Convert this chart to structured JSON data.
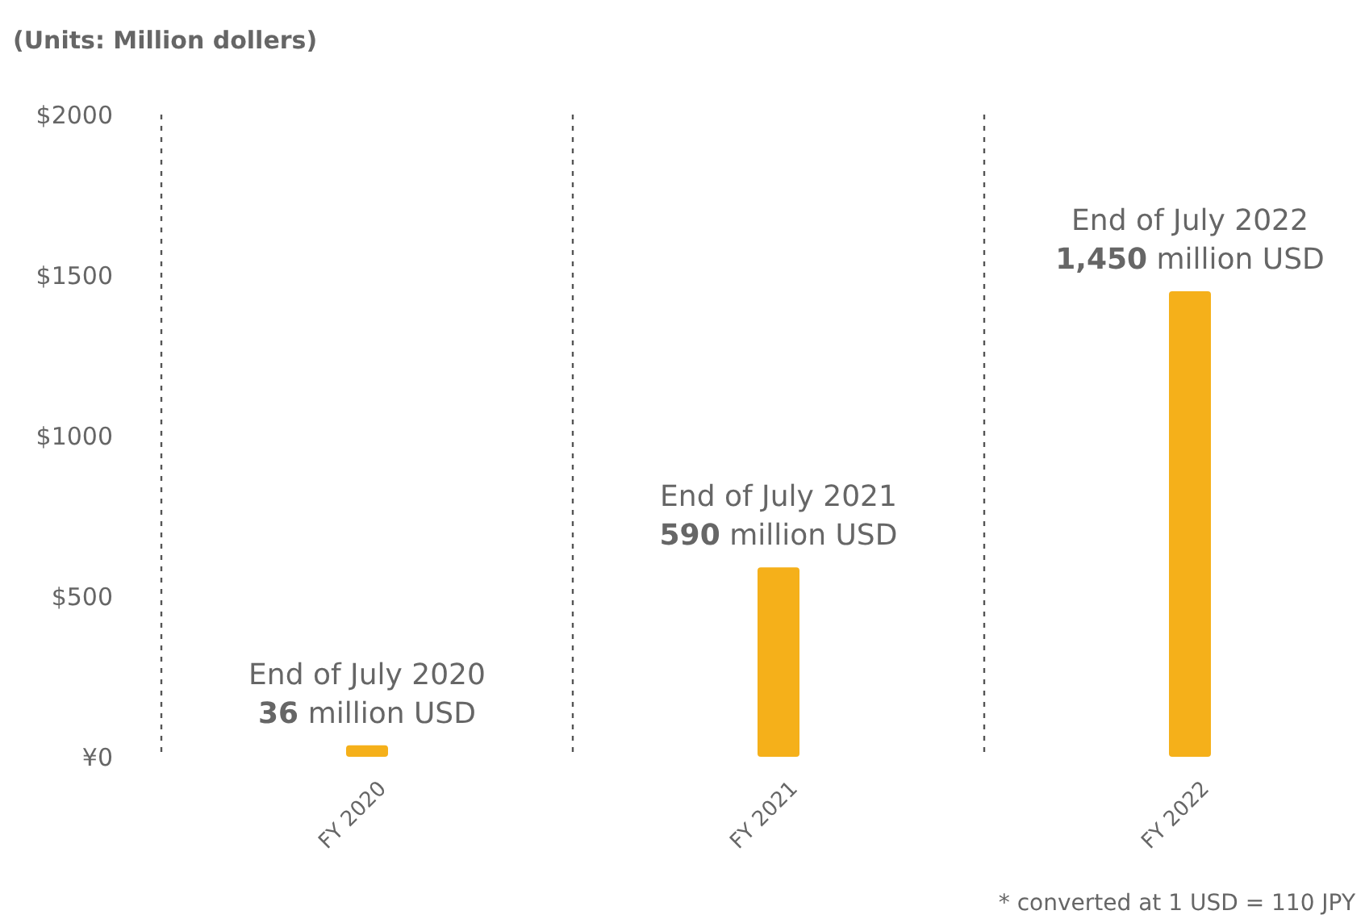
{
  "chart_data": {
    "type": "bar",
    "ylabel": "(Units: Million dollers)",
    "categories": [
      "FY 2020",
      "FY 2021",
      "FY 2022"
    ],
    "values": [
      36,
      590,
      1450
    ],
    "color": "#f5b01a",
    "value_labels": [
      "End of July 2020\n36 million USD",
      "End of July 2021\n590 million USD",
      "End of July 2022\n1,450 million USD"
    ],
    "ylim": [
      0,
      2000
    ],
    "yticks": [
      {
        "value": 0,
        "label": "¥0"
      },
      {
        "value": 500,
        "label": "$500"
      },
      {
        "value": 1000,
        "label": "$1000"
      },
      {
        "value": 1500,
        "label": "$1500"
      },
      {
        "value": 2000,
        "label": "$2000"
      }
    ],
    "grid": "x",
    "annotations": [
      "* converted at 1 USD = 110 JPY"
    ]
  }
}
